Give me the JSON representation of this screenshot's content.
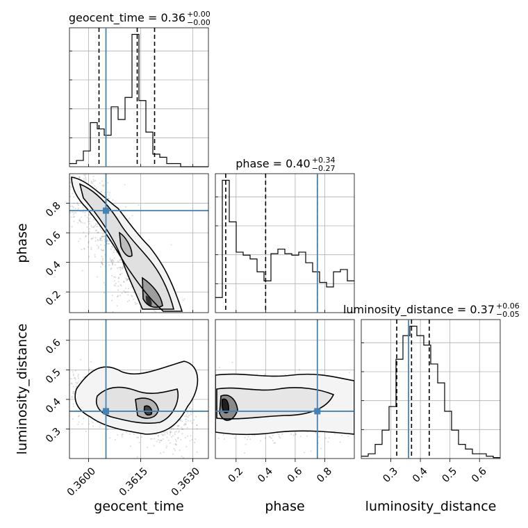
{
  "chart_data": {
    "type": "corner",
    "parameters": [
      "geocent_time",
      "phase",
      "luminosity_distance"
    ],
    "truths": {
      "geocent_time": 0.3605,
      "phase": 0.75,
      "luminosity_distance": 0.36
    },
    "truth_color": "#4682b4",
    "titles": [
      {
        "label": "geocent_time = 0.36",
        "sup": "+0.00",
        "sub": "−0.00"
      },
      {
        "label": "phase = 0.40",
        "sup": "+0.34",
        "sub": "−0.27"
      },
      {
        "label": "luminosity_distance = 0.37",
        "sup": "+0.06",
        "sub": "−0.05"
      }
    ],
    "axis_labels": {
      "geocent_time": "geocent_time",
      "phase": "phase",
      "luminosity_distance": "luminosity_distance"
    },
    "ranges": {
      "geocent_time": [
        0.35945,
        0.36345
      ],
      "phase": [
        0.06,
        1.0
      ],
      "luminosity_distance": [
        0.2,
        0.67
      ]
    },
    "ticks": {
      "geocent_time": [
        "0.3600",
        "0.3615",
        "0.3630"
      ],
      "phase": [
        "0.2",
        "0.4",
        "0.6",
        "0.8"
      ],
      "luminosity_distance": [
        "0.3",
        "0.4",
        "0.5",
        "0.6"
      ]
    },
    "tick_values": {
      "geocent_time": [
        0.36,
        0.3615,
        0.363
      ],
      "phase": [
        0.2,
        0.4,
        0.6,
        0.8
      ],
      "luminosity_distance": [
        0.3,
        0.4,
        0.5,
        0.6
      ]
    },
    "quantiles": {
      "geocent_time": [
        0.3603,
        0.3614,
        0.3619
      ],
      "phase": [
        0.13,
        0.4,
        0.75
      ],
      "luminosity_distance": [
        0.32,
        0.37,
        0.43
      ]
    },
    "histograms": {
      "geocent_time": {
        "edges_start": 0.35945,
        "bin_width": 0.0002,
        "counts": [
          1,
          2,
          5,
          14,
          12,
          10,
          19,
          15,
          22,
          42,
          21,
          11,
          4,
          3,
          1,
          1,
          0,
          0,
          0,
          0
        ]
      },
      "phase": {
        "edges_start": 0.06,
        "bin_width": 0.047,
        "counts": [
          2,
          17.5,
          12,
          8,
          7.6,
          7.1,
          5.4,
          4.2,
          7.8,
          8.4,
          7.8,
          7.6,
          8.0,
          6.6,
          5.4,
          4.0,
          3.4,
          5.4,
          5.7,
          4.2
        ]
      },
      "luminosity_distance": {
        "edges_start": 0.2,
        "bin_width": 0.0235,
        "counts": [
          0.5,
          1,
          3,
          6,
          11,
          21,
          26,
          28,
          26,
          24,
          20,
          16,
          10,
          6,
          3,
          2,
          1,
          1,
          0.5,
          0.2
        ]
      }
    },
    "peaks_2d": {
      "geocent_time_vs_phase": {
        "x": 0.3616,
        "y": 0.15
      },
      "geocent_time_vs_luminosity_distance": {
        "x": 0.3617,
        "y": 0.355
      },
      "phase_vs_luminosity_distance": {
        "x": 0.14,
        "y": 0.37
      }
    },
    "grid": true
  }
}
